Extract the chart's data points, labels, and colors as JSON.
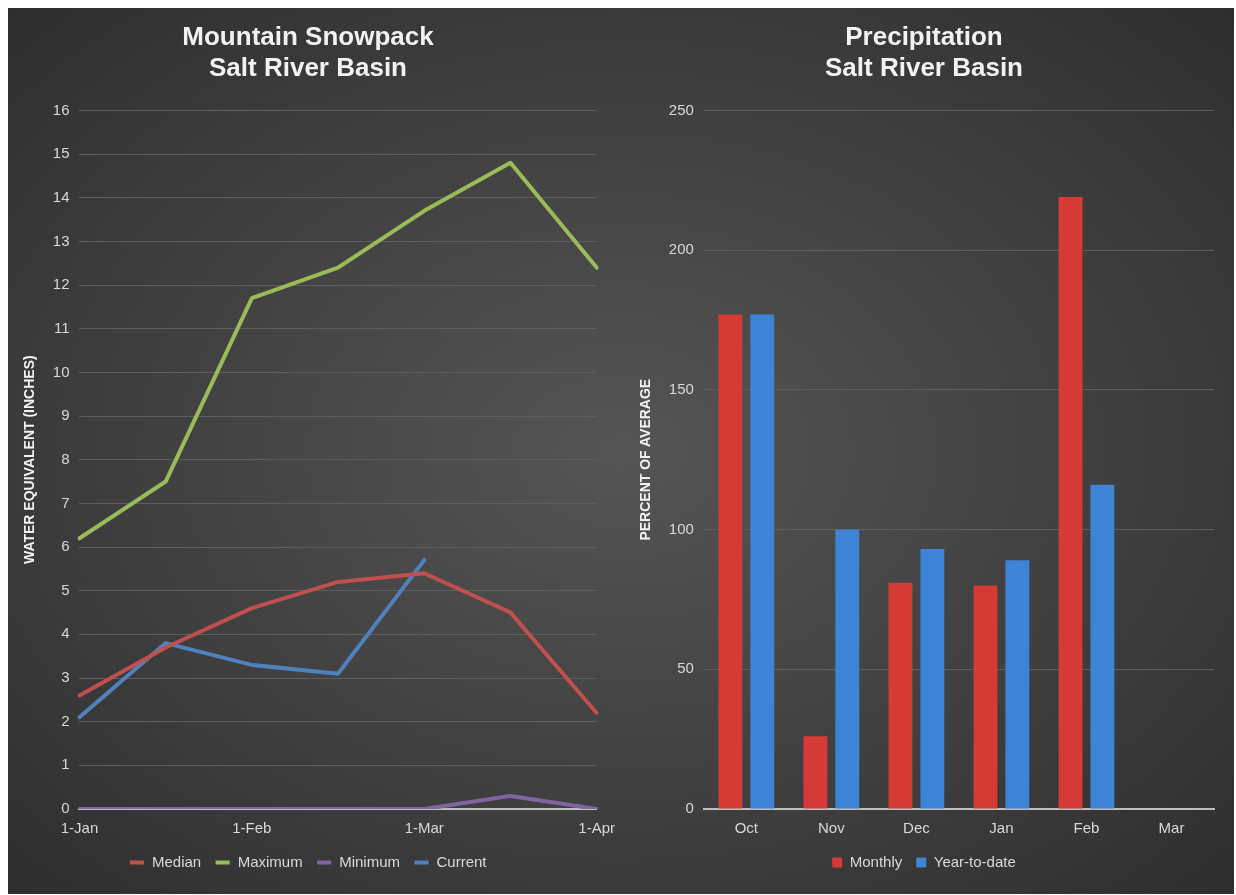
{
  "chart_data": [
    {
      "type": "line",
      "title": "Mountain Snowpack\nSalt River Basin",
      "ylabel": "WATER EQUIVALENT (INCHES)",
      "categories": [
        "1-Jan",
        null,
        "1-Feb",
        null,
        "1-Mar",
        null,
        "1-Apr"
      ],
      "series": [
        {
          "name": "Median",
          "color": "#c0504d",
          "values": [
            2.6,
            3.7,
            4.6,
            5.2,
            5.4,
            4.5,
            2.2
          ]
        },
        {
          "name": "Maximum",
          "color": "#9bbb59",
          "values": [
            6.2,
            7.5,
            11.7,
            12.4,
            13.7,
            14.8,
            12.4
          ]
        },
        {
          "name": "Minimum",
          "color": "#8064a2",
          "values": [
            0,
            0,
            0,
            0,
            0,
            0.3,
            0
          ]
        },
        {
          "name": "Current",
          "color": "#4f81bd",
          "values": [
            2.1,
            3.8,
            3.3,
            3.1,
            5.7,
            null,
            null
          ]
        }
      ],
      "ylim": [
        0,
        16
      ],
      "yticks": [
        0,
        1,
        2,
        3,
        4,
        5,
        6,
        7,
        8,
        9,
        10,
        11,
        12,
        13,
        14,
        15,
        16
      ],
      "grid": "y",
      "legend": "bottom",
      "marker": "none",
      "line_style": "solid"
    },
    {
      "type": "bar",
      "title": "Precipitation\nSalt River Basin",
      "ylabel": "PERCENT OF AVERAGE",
      "categories": [
        "Oct",
        "Nov",
        "Dec",
        "Jan",
        "Feb",
        "Mar"
      ],
      "series": [
        {
          "name": "Monthly",
          "color": "#d63a34",
          "values": [
            177,
            26,
            81,
            80,
            219,
            null
          ]
        },
        {
          "name": "Year-to-date",
          "color": "#3d83d6",
          "values": [
            177,
            100,
            93,
            89,
            116,
            null
          ]
        }
      ],
      "ylim": [
        0,
        250
      ],
      "yticks": [
        0,
        50,
        100,
        150,
        200,
        250
      ],
      "grid": "y",
      "legend": "bottom"
    }
  ]
}
